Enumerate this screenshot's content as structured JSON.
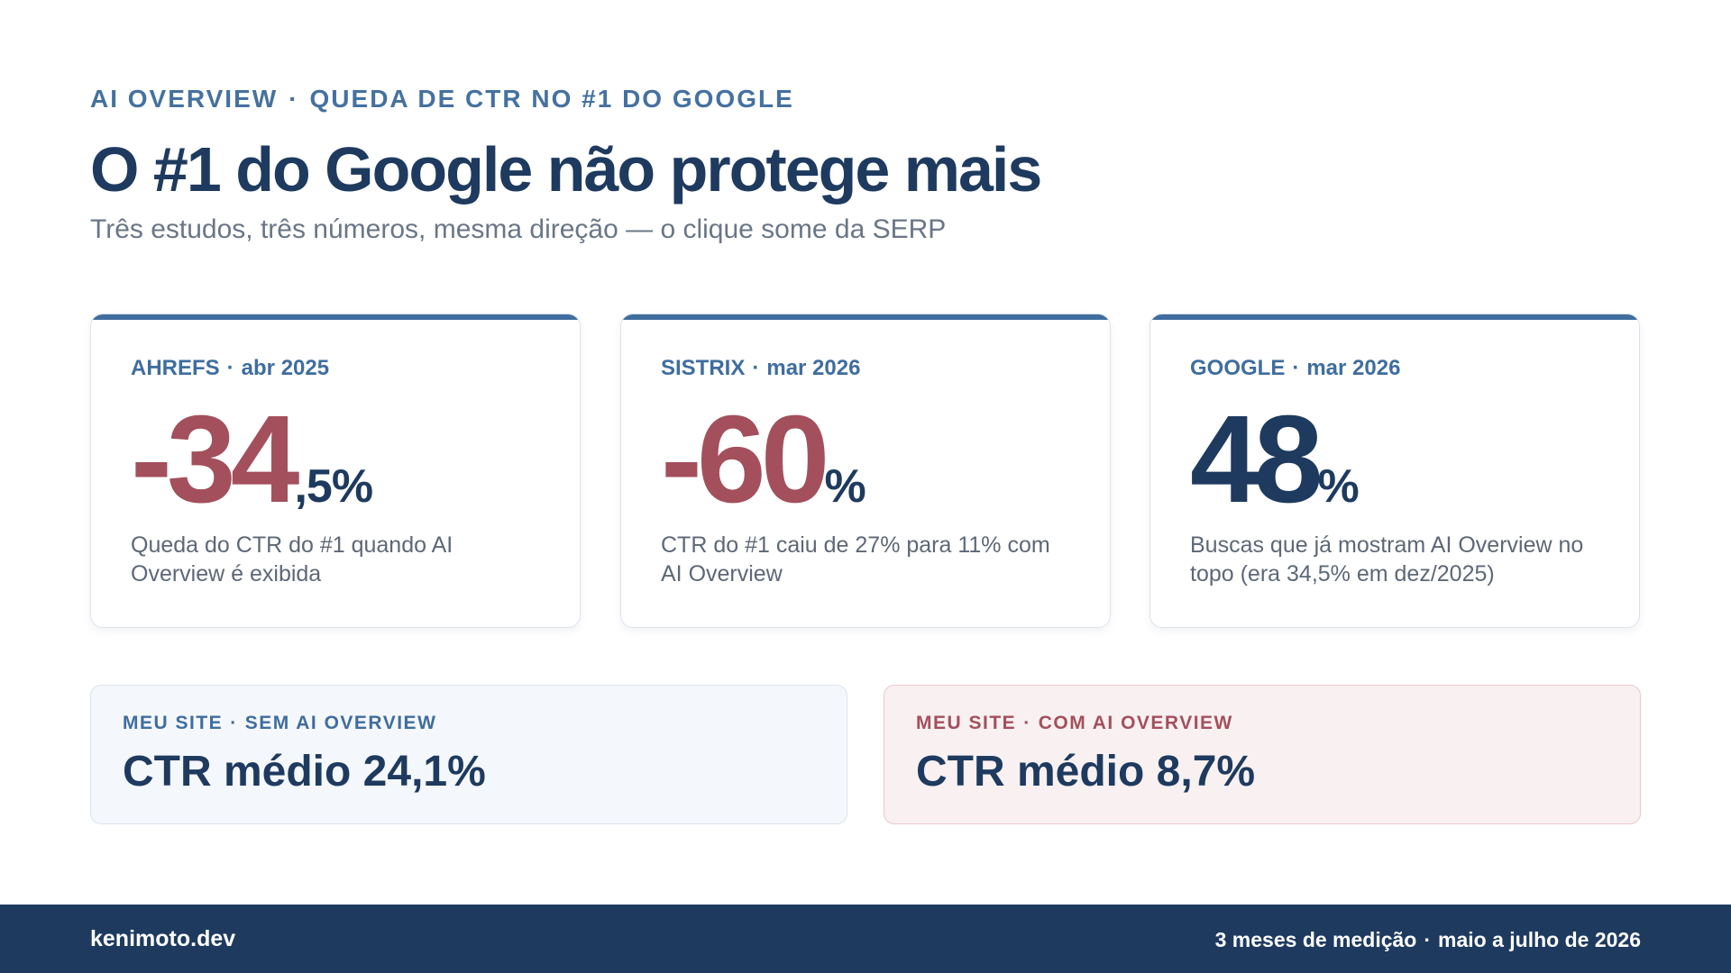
{
  "header": {
    "kicker_primary": "AI OVERVIEW",
    "kicker_separator": "·",
    "kicker_secondary": "QUEDA DE CTR NO #1 DO GOOGLE",
    "title": "O #1 do Google não protege mais",
    "subtitle": "Três estudos, três números, mesma direção — o clique some da SERP"
  },
  "stats": [
    {
      "source": "AHREFS",
      "separator": "·",
      "date": "abr 2025",
      "value_main": "-34",
      "value_suffix": ",5%",
      "description": "Queda do CTR do #1 quando AI Overview é exibida",
      "tone": "negative"
    },
    {
      "source": "SISTRIX",
      "separator": "·",
      "date": "mar 2026",
      "value_main": "-60",
      "value_suffix": "%",
      "description": "CTR do #1 caiu de 27% para 11% com AI Overview",
      "tone": "negative"
    },
    {
      "source": "GOOGLE",
      "separator": "·",
      "date": "mar 2026",
      "value_main": "48",
      "value_suffix": "%",
      "description": "Buscas que já mostram AI Overview no topo (era 34,5% em dez/2025)",
      "tone": "neutral"
    }
  ],
  "site_comparison": {
    "without_ai": {
      "label_primary": "MEU SITE",
      "separator": "·",
      "label_secondary": "SEM AI OVERVIEW",
      "value": "CTR médio 24,1%"
    },
    "with_ai": {
      "label_primary": "MEU SITE",
      "separator": "·",
      "label_secondary": "COM AI OVERVIEW",
      "value": "CTR médio 8,7%"
    }
  },
  "footer": {
    "brand": "kenimoto.dev",
    "period_duration": "3 meses de medição",
    "separator": "·",
    "period_range": "maio a julho de 2026"
  },
  "colors": {
    "navy": "#1e3a5f",
    "accent_blue": "#3f6d9e",
    "negative_red": "#a3505c",
    "muted_text": "#5d6877"
  }
}
